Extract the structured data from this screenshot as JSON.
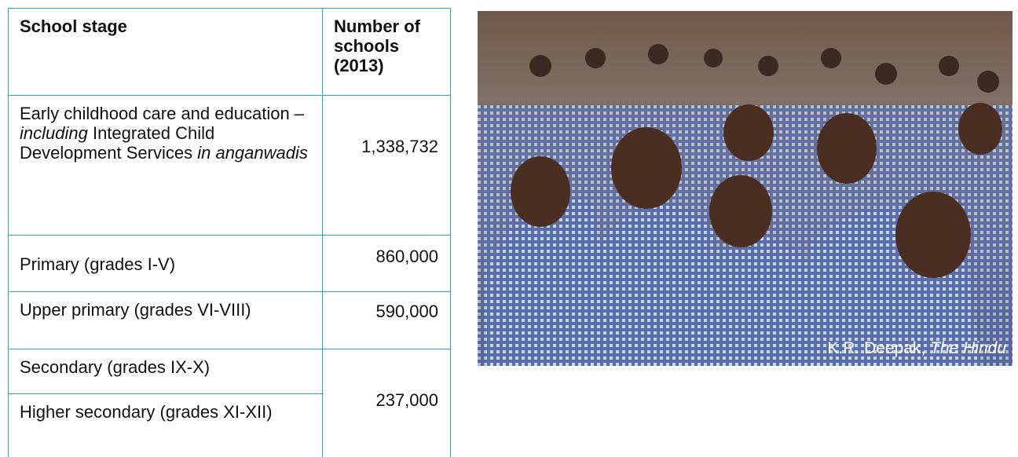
{
  "table": {
    "header": [
      "School stage",
      "Number of schools (2013)"
    ],
    "rows": [
      [
        [
          "Early childhood care and education – ",
          "including",
          " Integrated Child Development Services ",
          "in anganwadis"
        ],
        "1,338,732"
      ],
      [
        "Primary (grades I-V)",
        "860,000"
      ],
      [
        "Upper primary (grades VI-VIII)",
        "590,000"
      ],
      [
        "Secondary (grades IX-X)",
        "237,000"
      ],
      [
        "Higher secondary (grades XI-XII)"
      ]
    ]
  },
  "photo": {
    "credit": [
      "K.R. Deepak, ",
      "The Hindu"
    ]
  }
}
